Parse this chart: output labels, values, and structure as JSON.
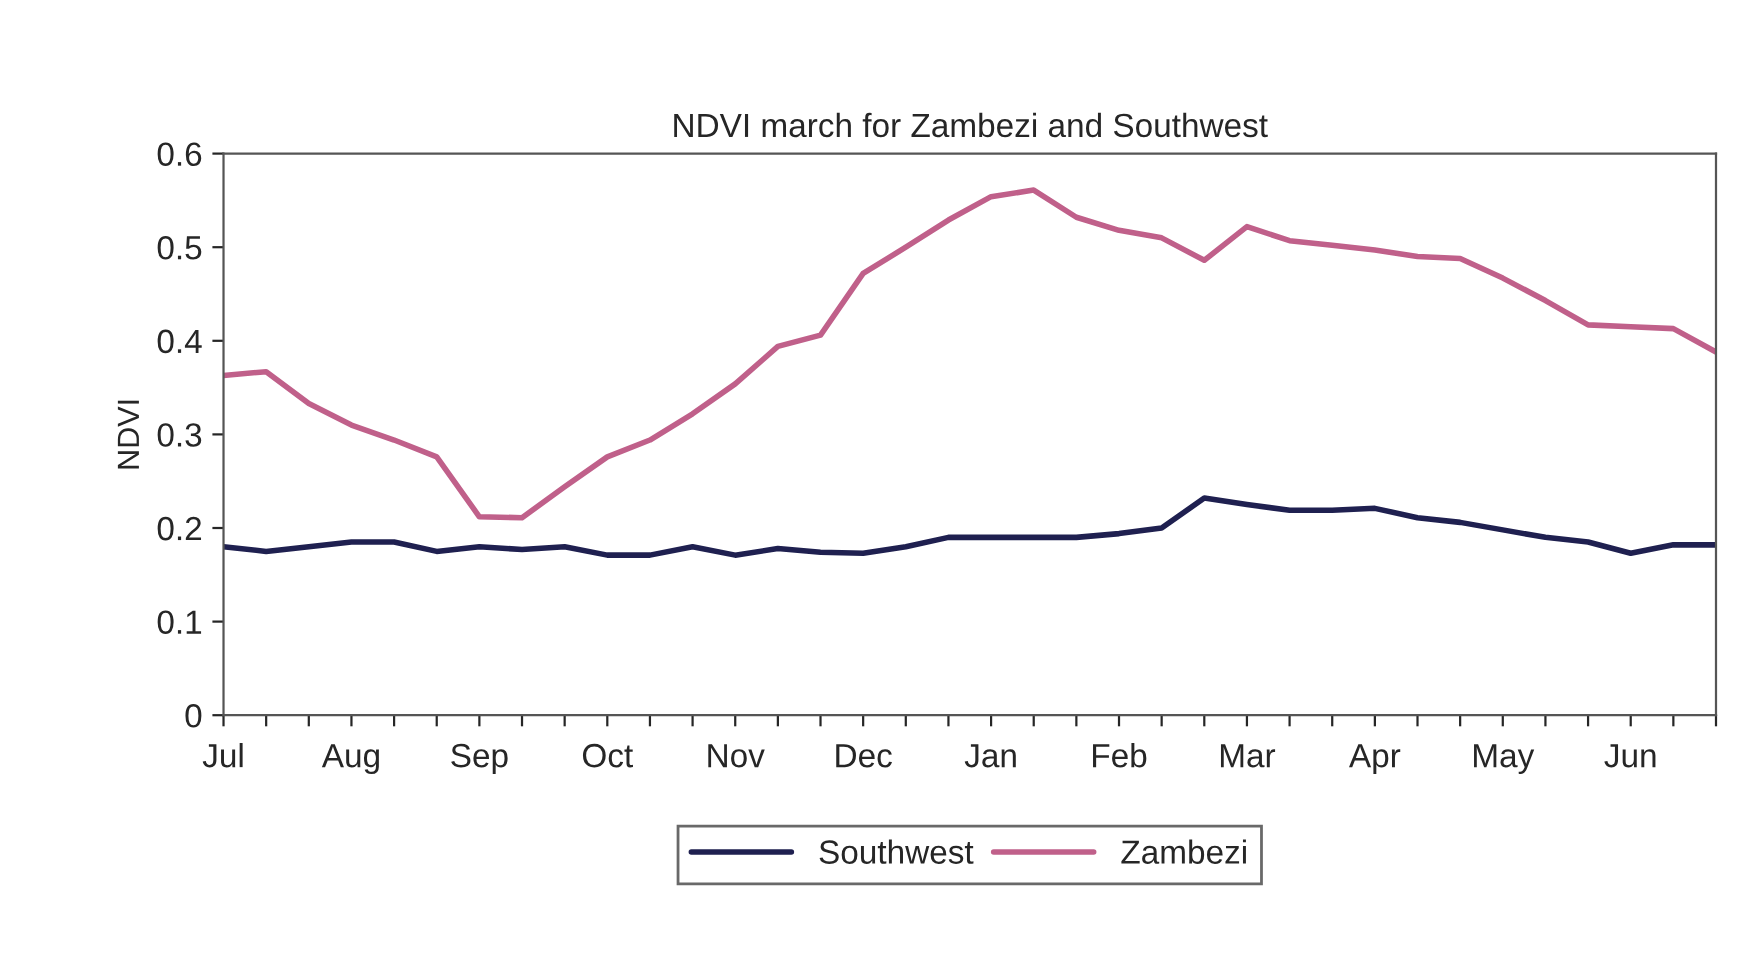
{
  "chart_data": {
    "type": "line",
    "title": "NDVI march for Zambezi and Southwest",
    "ylabel": "NDVI",
    "categories": [
      "Jul",
      null,
      null,
      "Aug",
      null,
      null,
      "Sep",
      null,
      null,
      "Oct",
      null,
      null,
      "Nov",
      null,
      null,
      "Dec",
      null,
      null,
      "Jan",
      null,
      null,
      "Feb",
      null,
      null,
      "Mar",
      null,
      null,
      "Apr",
      null,
      null,
      "May",
      null,
      null,
      "Jun",
      null,
      null
    ],
    "series": [
      {
        "name": "Southwest",
        "color": "#1f2050",
        "values": [
          0.18,
          0.175,
          0.18,
          0.185,
          0.185,
          0.175,
          0.18,
          0.177,
          0.18,
          0.171,
          0.171,
          0.18,
          0.171,
          0.178,
          0.174,
          0.173,
          0.18,
          0.19,
          0.19,
          0.19,
          0.19,
          0.194,
          0.2,
          0.232,
          0.225,
          0.219,
          0.219,
          0.221,
          0.211,
          0.206,
          0.198,
          0.19,
          0.185,
          0.173,
          0.182,
          0.182
        ]
      },
      {
        "name": "Zambezi",
        "color": "#c0608a",
        "values": [
          0.363,
          0.367,
          0.333,
          0.31,
          0.294,
          0.276,
          0.212,
          0.211,
          0.244,
          0.276,
          0.294,
          0.322,
          0.354,
          0.394,
          0.406,
          0.472,
          0.5,
          0.529,
          0.554,
          0.561,
          0.532,
          0.518,
          0.51,
          0.486,
          0.522,
          0.507,
          0.502,
          0.497,
          0.49,
          0.488,
          0.467,
          0.443,
          0.417,
          0.415,
          0.413,
          0.388
        ]
      }
    ],
    "ylim": [
      0,
      0.6
    ],
    "yticks": [
      0,
      0.1,
      0.2,
      0.3,
      0.4,
      0.5,
      0.6
    ],
    "grid": false,
    "legend": "bottom",
    "marker": "none",
    "line_style": "solid"
  }
}
